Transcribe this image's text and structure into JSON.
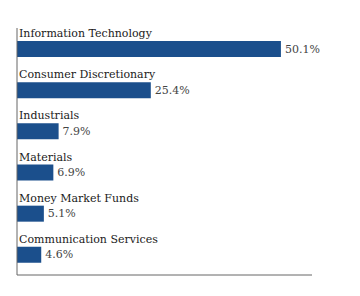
{
  "chart_data": {
    "type": "bar",
    "orientation": "horizontal",
    "categories": [
      "Communication Services",
      "Money Market Funds",
      "Materials",
      "Industrials",
      "Consumer Discretionary",
      "Information Technology"
    ],
    "values": [
      4.6,
      5.1,
      6.9,
      7.9,
      25.4,
      50.1
    ],
    "value_labels": [
      "4.6%",
      "5.1%",
      "6.9%",
      "7.9%",
      "25.4%",
      "50.1%"
    ],
    "data_labels": true,
    "color": "#1b4f8c",
    "xlim": [
      0,
      56
    ],
    "tick_labels": false
  }
}
